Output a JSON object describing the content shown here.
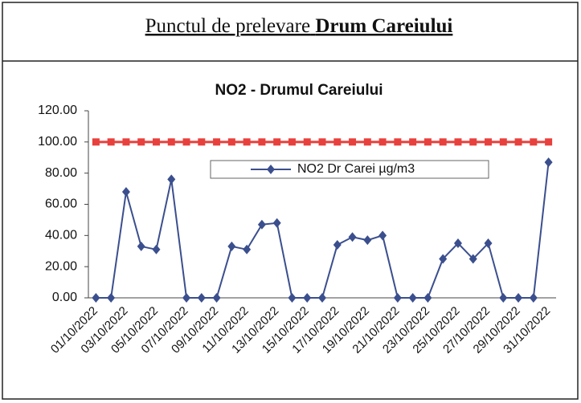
{
  "header": {
    "text": "Punctul de prelevare",
    "emphasis": "Drum Careiului"
  },
  "chart_data": {
    "type": "line",
    "title": "NO2 - Drumul Careiului",
    "categories": [
      "01/10/2022",
      null,
      "03/10/2022",
      null,
      "05/10/2022",
      null,
      "07/10/2022",
      null,
      "09/10/2022",
      null,
      "11/10/2022",
      null,
      "13/10/2022",
      null,
      "15/10/2022",
      null,
      "17/10/2022",
      null,
      "19/10/2022",
      null,
      "21/10/2022",
      null,
      "23/10/2022",
      null,
      "25/10/2022",
      null,
      "27/10/2022",
      null,
      "29/10/2022",
      null,
      "31/10/2022"
    ],
    "series": [
      {
        "color": "#e8403c",
        "marker": "square",
        "values": [
          100,
          100,
          100,
          100,
          100,
          100,
          100,
          100,
          100,
          100,
          100,
          100,
          100,
          100,
          100,
          100,
          100,
          100,
          100,
          100,
          100,
          100,
          100,
          100,
          100,
          100,
          100,
          100,
          100,
          100,
          100
        ]
      },
      {
        "name": "NO2 Dr Carei  µg/m3",
        "color": "#3b4f8e",
        "marker": "diamond",
        "values": [
          0,
          0,
          68,
          33,
          31,
          76,
          0,
          0,
          0,
          33,
          31,
          47,
          48,
          0,
          0,
          0,
          34,
          39,
          37,
          40,
          0,
          0,
          0,
          25,
          35,
          25,
          35,
          0,
          0,
          0,
          87
        ]
      }
    ],
    "ylim": [
      0,
      120
    ],
    "yticks": [
      {
        "value": 0,
        "label": "0.00"
      },
      {
        "value": 20,
        "label": "20.00"
      },
      {
        "value": 40,
        "label": "40.00"
      },
      {
        "value": 60,
        "label": "60.00"
      },
      {
        "value": 80,
        "label": "80.00"
      },
      {
        "value": 100,
        "label": "100.00"
      },
      {
        "value": 120,
        "label": "120.00"
      }
    ],
    "grid": false,
    "legend": "top"
  }
}
